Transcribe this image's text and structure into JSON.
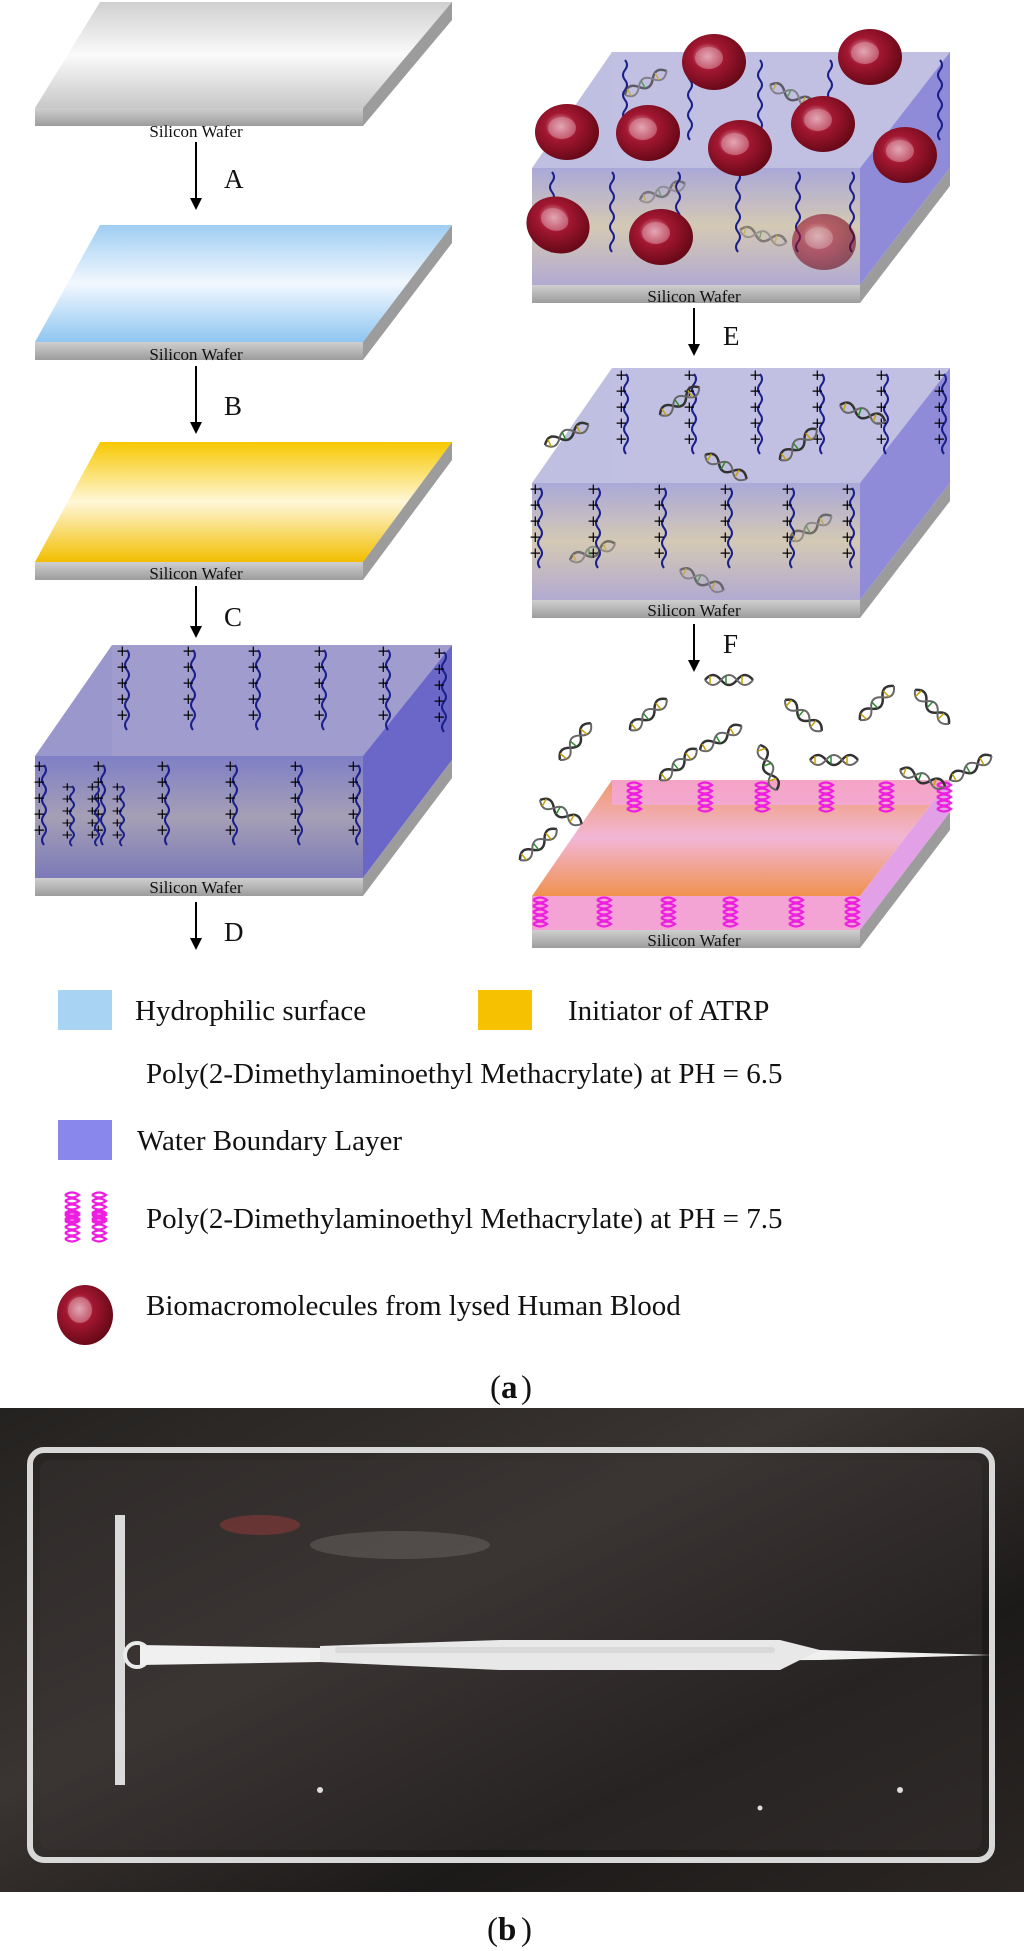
{
  "steps": {
    "1": {
      "wafer_label": "Silicon Wafer"
    },
    "2": {
      "wafer_label": "Silicon Wafer"
    },
    "3": {
      "wafer_label": "Silicon Wafer"
    },
    "4": {
      "wafer_label": "Silicon Wafer"
    },
    "5": {
      "wafer_label": "Silicon Wafer"
    },
    "6": {
      "wafer_label": "Silicon Wafer"
    },
    "7": {
      "wafer_label": "Silicon Wafer"
    }
  },
  "step_labels": [
    "A",
    "B",
    "C",
    "D",
    "E",
    "F"
  ],
  "legend": [
    {
      "icon": "light-blue-swatch-icon",
      "color": "#a9d3f2",
      "text": "Hydrophilic surface"
    },
    {
      "icon": "yellow-swatch-icon",
      "color": "#f6c200",
      "text": "Initiator of ATRP"
    },
    {
      "icon": "charged-polymer-chains-icon",
      "text": "Poly(2-Dimethylaminoethyl Methacrylate) at PH = 6.5"
    },
    {
      "icon": "lavender-swatch-icon",
      "color": "#8a87ec",
      "text": "Water Boundary Layer"
    },
    {
      "icon": "magenta-coil-icon",
      "color": "#ee1ee0",
      "text": "Poly(2-Dimethylaminoethyl Methacrylate) at PH = 7.5"
    },
    {
      "icon": "red-blood-cell-icon",
      "color": "#8b0f22",
      "text": "Biomacromolecules from lysed Human Blood"
    }
  ],
  "panel_labels": {
    "a": "a",
    "b": "b"
  },
  "colors": {
    "hydrophilic": "#a9d3f2",
    "initiator": "#f6c200",
    "water_layer": "#8a87ec",
    "polymer_collapsed": "#ee1ee0",
    "blood_cell": "#8b0f22",
    "wafer": "#b8b8b8"
  },
  "photo": {
    "description_icon": "microfluidic-chip-photo"
  }
}
